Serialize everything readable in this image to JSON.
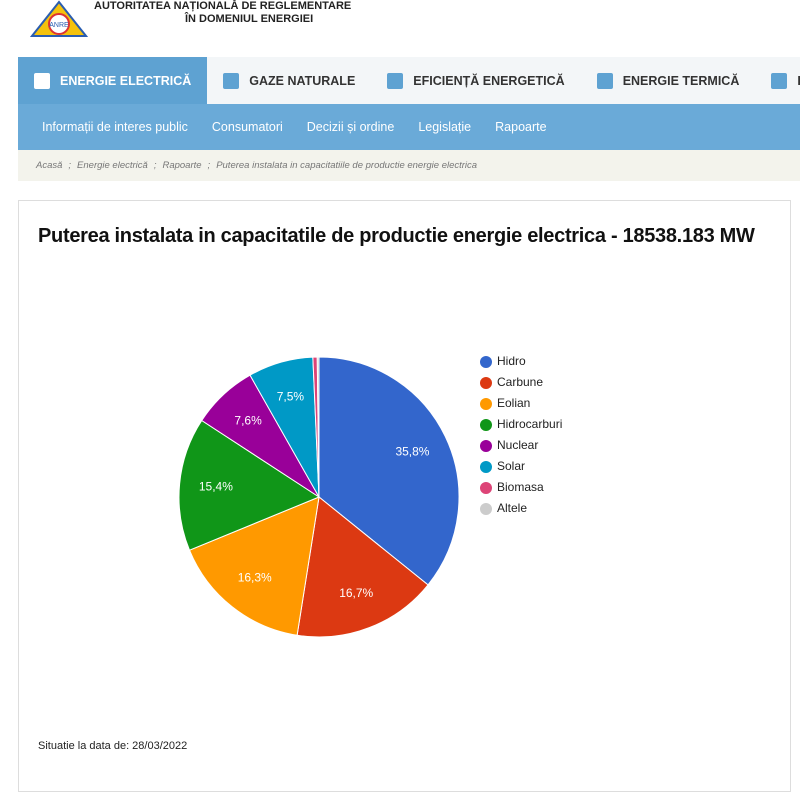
{
  "header": {
    "org_line1": "AUTORITATEA NAȚIONALĂ DE REGLEMENTARE",
    "org_line2": "ÎN DOMENIUL ENERGIEI",
    "logo_text": "ANRE"
  },
  "nav": {
    "tabs": [
      "ENERGIE ELECTRICĂ",
      "GAZE NATURALE",
      "EFICIENȚĂ ENERGETICĂ",
      "ENERGIE TERMICĂ",
      "INFO CONSU"
    ],
    "subnav": [
      "Informații de interes public",
      "Consumatori",
      "Decizii și ordine",
      "Legislație",
      "Rapoarte"
    ]
  },
  "breadcrumb": {
    "separator": ";",
    "items": [
      "Acasă",
      "Energie electrică",
      "Rapoarte",
      "Puterea instalata in capacitatiile de productie energie electrica"
    ]
  },
  "chart_data": {
    "type": "pie",
    "title": "Puterea instalata in capacitatile de productie energie electrica - 18538.183 MW",
    "categories": [
      "Hidro",
      "Carbune",
      "Eolian",
      "Hidrocarburi",
      "Nuclear",
      "Solar",
      "Biomasa",
      "Altele"
    ],
    "values": [
      35.8,
      16.7,
      16.3,
      15.4,
      7.6,
      7.5,
      0.5,
      0.2
    ],
    "value_labels": [
      "35,8%",
      "16,7%",
      "16,3%",
      "15,4%",
      "7,6%",
      "7,5%",
      null,
      null
    ],
    "colors": [
      "#3366cc",
      "#dc3912",
      "#ff9900",
      "#109618",
      "#990099",
      "#0099c6",
      "#dd4477",
      "#cccccc"
    ],
    "legend": "right"
  },
  "footnote": "Situatie la data de: 28/03/2022"
}
